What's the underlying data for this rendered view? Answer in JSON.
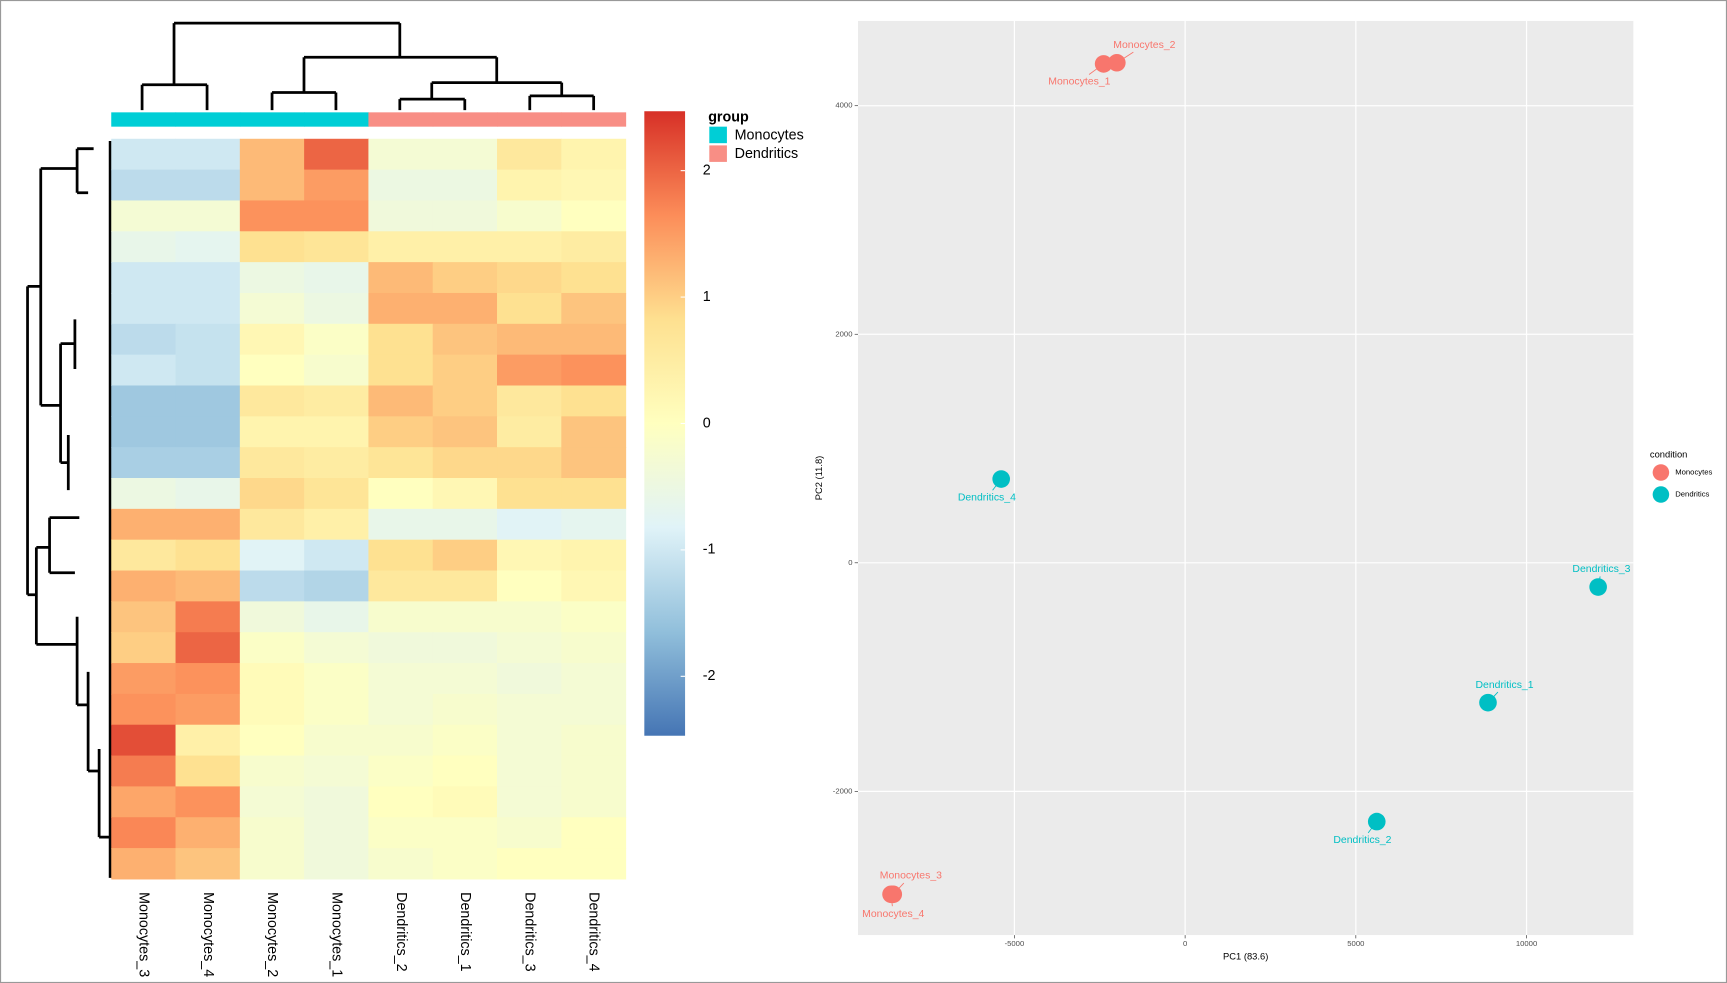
{
  "chart_data": [
    {
      "type": "heatmap",
      "columns": [
        "Monocytes_3",
        "Monocytes_4",
        "Monocytes_2",
        "Monocytes_1",
        "Dendritics_2",
        "Dendritics_1",
        "Dendritics_3",
        "Dendritics_4"
      ],
      "values": [
        [
          -1,
          -1,
          1.2,
          2,
          -0.3,
          -0.3,
          0.6,
          0.3
        ],
        [
          -1.2,
          -1.2,
          1.2,
          1.5,
          -0.5,
          -0.5,
          0.3,
          0.2
        ],
        [
          -0.3,
          -0.3,
          1.6,
          1.6,
          -0.4,
          -0.4,
          -0.2,
          0
        ],
        [
          -0.6,
          -0.7,
          0.8,
          0.7,
          0.4,
          0.4,
          0.4,
          0.5
        ],
        [
          -1,
          -1,
          -0.5,
          -0.6,
          1.2,
          1,
          0.9,
          0.8
        ],
        [
          -1,
          -1,
          -0.3,
          -0.5,
          1.3,
          1.3,
          0.8,
          1.1
        ],
        [
          -1.2,
          -1.1,
          0.2,
          -0.1,
          0.8,
          1.1,
          1.2,
          1.2
        ],
        [
          -1,
          -1.1,
          0,
          -0.2,
          0.8,
          1,
          1.5,
          1.6
        ],
        [
          -1.5,
          -1.5,
          0.6,
          0.5,
          1.2,
          1,
          0.6,
          0.8
        ],
        [
          -1.5,
          -1.5,
          0.3,
          0.3,
          1,
          1.1,
          0.5,
          1.1
        ],
        [
          -1.4,
          -1.4,
          0.6,
          0.5,
          0.7,
          0.9,
          0.9,
          1.1
        ],
        [
          -0.5,
          -0.6,
          0.9,
          0.7,
          0,
          0.2,
          0.8,
          0.8
        ],
        [
          1.3,
          1.3,
          0.6,
          0.4,
          -0.6,
          -0.6,
          -0.8,
          -0.7
        ],
        [
          0.6,
          0.8,
          -0.8,
          -1,
          0.8,
          1,
          0.2,
          0.3
        ],
        [
          1.3,
          1.2,
          -1.2,
          -1.3,
          0.6,
          0.6,
          0,
          0.2
        ],
        [
          1.1,
          1.8,
          -0.4,
          -0.6,
          -0.2,
          -0.2,
          -0.2,
          -0.1
        ],
        [
          1,
          2,
          -0.1,
          -0.3,
          -0.4,
          -0.4,
          -0.3,
          -0.2
        ],
        [
          1.5,
          1.6,
          0.1,
          -0.1,
          -0.3,
          -0.3,
          -0.4,
          -0.3
        ],
        [
          1.6,
          1.5,
          0.1,
          -0.1,
          -0.3,
          -0.2,
          -0.3,
          -0.3
        ],
        [
          2.2,
          0.4,
          0,
          -0.2,
          -0.2,
          -0.1,
          -0.3,
          -0.2
        ],
        [
          1.8,
          0.8,
          -0.2,
          -0.3,
          -0.1,
          0,
          -0.3,
          -0.2
        ],
        [
          1.4,
          1.6,
          -0.3,
          -0.4,
          0,
          0.1,
          -0.3,
          -0.2
        ],
        [
          1.7,
          1.3,
          -0.2,
          -0.4,
          -0.1,
          -0.1,
          -0.2,
          0
        ],
        [
          1.3,
          1.1,
          -0.2,
          -0.4,
          -0.2,
          -0.1,
          0,
          0
        ]
      ],
      "colors": [
        "#4575B4",
        "#91BFDB",
        "#E0F3F8",
        "#FFFFBF",
        "#FEE090",
        "#FC8D59",
        "#D73027"
      ],
      "zlim": [
        -2.47,
        2.47
      ],
      "zticks": [
        -2,
        -1,
        0,
        1,
        2
      ],
      "annotation": {
        "title": "group",
        "names": [
          "Monocytes",
          "Dendritics"
        ],
        "colors": [
          "#00CED6",
          "#F88E85"
        ],
        "column_groups": [
          0,
          0,
          0,
          0,
          1,
          1,
          1,
          1
        ]
      }
    },
    {
      "type": "scatter",
      "xlabel": "PC1 (83.6)",
      "ylabel": "PC2 (11.8)",
      "xlim": [
        -9581,
        13129
      ],
      "ylim": [
        -3258,
        4742
      ],
      "xticks": [
        -5000,
        0,
        5000,
        10000
      ],
      "yticks": [
        -2000,
        0,
        2000,
        4000
      ],
      "grid": true,
      "legend_title": "condition",
      "legend": "right",
      "series": [
        {
          "name": "Monocytes",
          "color": "#F8766D",
          "x": [
            -2387,
            -2000,
            -8548,
            -8613
          ],
          "values": [
            4366,
            4376,
            -2901,
            -2901
          ],
          "labels": [
            "Monocytes_1",
            "Monocytes_2",
            "Monocytes_3",
            "Monocytes_4"
          ]
        },
        {
          "name": "Dendritics",
          "color": "#00BFC4",
          "x": [
            8871,
            5613,
            12097,
            -5387
          ],
          "values": [
            -1224,
            -2265,
            -212,
            733
          ],
          "labels": [
            "Dendritics_1",
            "Dendritics_2",
            "Dendritics_3",
            "Dendritics_4"
          ]
        }
      ]
    }
  ]
}
